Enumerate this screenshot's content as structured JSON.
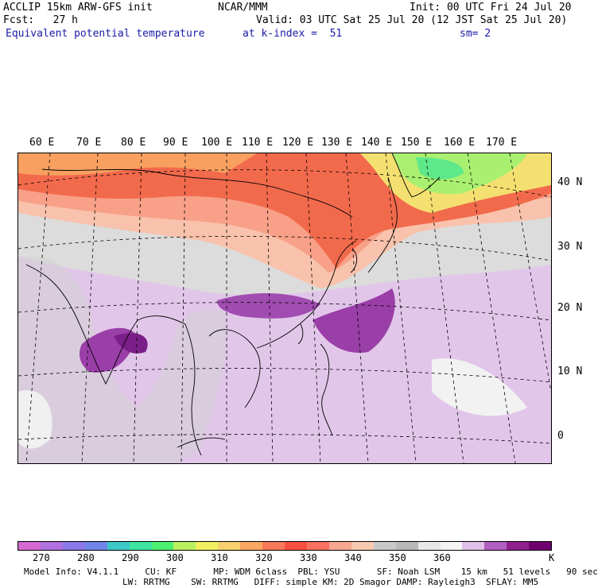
{
  "header": {
    "model": "ACCLIP 15km ARW-GFS init",
    "org": "NCAR/MMM",
    "init": "Init: 00 UTC Fri 24 Jul 20",
    "fcst": "Fcst:   27 h",
    "valid": "Valid: 03 UTC Sat 25 Jul 20 (12 JST Sat 25 Jul 20)",
    "field": "Equivalent potential temperature",
    "level": "at k-index =  51",
    "smooth": "sm= 2"
  },
  "map": {
    "lon_labels": [
      "60 E",
      "70 E",
      "80 E",
      "90 E",
      "100 E",
      "110 E",
      "120 E",
      "130 E",
      "140 E",
      "150 E",
      "160 E",
      "170 E"
    ],
    "lat_labels": [
      "40 N",
      "30 N",
      "20 N",
      "10 N",
      "0"
    ]
  },
  "colorbar": {
    "colors": [
      "#d46ad2",
      "#b070e0",
      "#8c78e8",
      "#6f86e8",
      "#3ec8c8",
      "#3ee4a0",
      "#4ef070",
      "#b8f060",
      "#f0f060",
      "#f8d070",
      "#f8a860",
      "#f87858",
      "#f85040",
      "#f87060",
      "#f8a890",
      "#f8c8b0",
      "#c8c8c8",
      "#b8b8b8",
      "#e8e8e8",
      "#f4f4f4",
      "#e0c0e8",
      "#b060c0",
      "#902090",
      "#700070"
    ],
    "ticks": [
      "270",
      "280",
      "290",
      "300",
      "310",
      "320",
      "330",
      "340",
      "350",
      "360"
    ],
    "unit": "K"
  },
  "model_info": {
    "line1": "Model Info: V4.1.1     CU: KF       MP: WDM 6class  PBL: YSU       SF: Noah LSM    15 km   51 levels   90 sec",
    "line2": "LW: RRTMG    SW: RRTMG   DIFF: simple KM: 2D Smagor DAMP: Rayleigh3  SFLAY: MM5"
  }
}
